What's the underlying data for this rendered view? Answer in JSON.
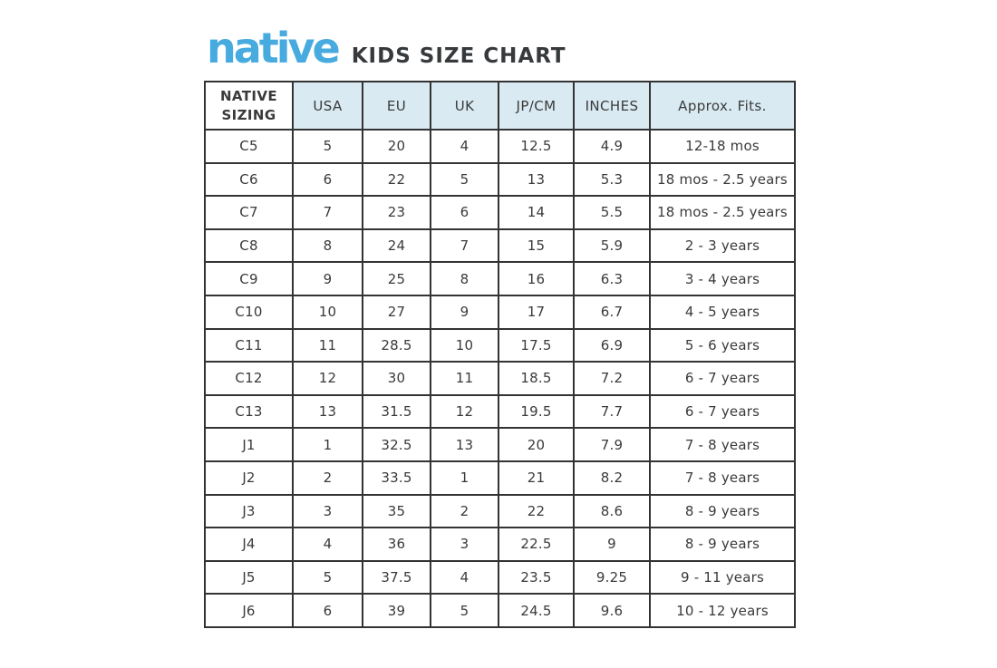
{
  "page": {
    "brand": "native",
    "title": "KIDS SIZE CHART"
  },
  "colors": {
    "brand_blue": "#47ABDF",
    "header_bg": "#D9EAF2",
    "border": "#333333",
    "text": "#3A3A3A"
  },
  "chart_data": {
    "type": "table",
    "title": "KIDS SIZE CHART",
    "columns": [
      "NATIVE SIZING",
      "USA",
      "EU",
      "UK",
      "JP/CM",
      "INCHES",
      "Approx. Fits."
    ],
    "rows": [
      [
        "C5",
        "5",
        "20",
        "4",
        "12.5",
        "4.9",
        "12-18 mos"
      ],
      [
        "C6",
        "6",
        "22",
        "5",
        "13",
        "5.3",
        "18 mos - 2.5 years"
      ],
      [
        "C7",
        "7",
        "23",
        "6",
        "14",
        "5.5",
        "18 mos - 2.5 years"
      ],
      [
        "C8",
        "8",
        "24",
        "7",
        "15",
        "5.9",
        "2 - 3 years"
      ],
      [
        "C9",
        "9",
        "25",
        "8",
        "16",
        "6.3",
        "3 - 4 years"
      ],
      [
        "C10",
        "10",
        "27",
        "9",
        "17",
        "6.7",
        "4 - 5 years"
      ],
      [
        "C11",
        "11",
        "28.5",
        "10",
        "17.5",
        "6.9",
        "5 - 6 years"
      ],
      [
        "C12",
        "12",
        "30",
        "11",
        "18.5",
        "7.2",
        "6 - 7 years"
      ],
      [
        "C13",
        "13",
        "31.5",
        "12",
        "19.5",
        "7.7",
        "6 - 7 years"
      ],
      [
        "J1",
        "1",
        "32.5",
        "13",
        "20",
        "7.9",
        "7 - 8 years"
      ],
      [
        "J2",
        "2",
        "33.5",
        "1",
        "21",
        "8.2",
        "7 - 8 years"
      ],
      [
        "J3",
        "3",
        "35",
        "2",
        "22",
        "8.6",
        "8 - 9 years"
      ],
      [
        "J4",
        "4",
        "36",
        "3",
        "22.5",
        "9",
        "8 - 9 years"
      ],
      [
        "J5",
        "5",
        "37.5",
        "4",
        "23.5",
        "9.25",
        "9 - 11 years"
      ],
      [
        "J6",
        "6",
        "39",
        "5",
        "24.5",
        "9.6",
        "10 - 12 years"
      ]
    ]
  }
}
